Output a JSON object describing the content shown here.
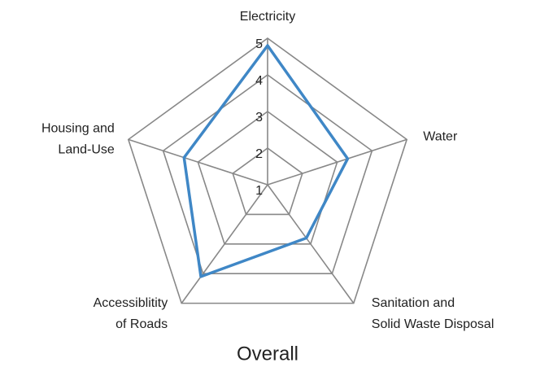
{
  "chart_data": {
    "type": "radar",
    "title": "Overall",
    "categories": [
      "Electricity",
      "Water",
      [
        "Sanitation and",
        "Solid Waste Disposal"
      ],
      [
        "Accessiblitity",
        "of Roads"
      ],
      [
        "Housing and",
        "Land-Use"
      ]
    ],
    "series": [
      {
        "color": "#3f87c6",
        "values": [
          4.8,
          3.3,
          2.8,
          4.1,
          3.4
        ]
      }
    ],
    "rlim": [
      1,
      5
    ],
    "rticks": [
      1,
      2,
      3,
      4,
      5
    ],
    "grid": true,
    "grid_color": "#888888"
  }
}
